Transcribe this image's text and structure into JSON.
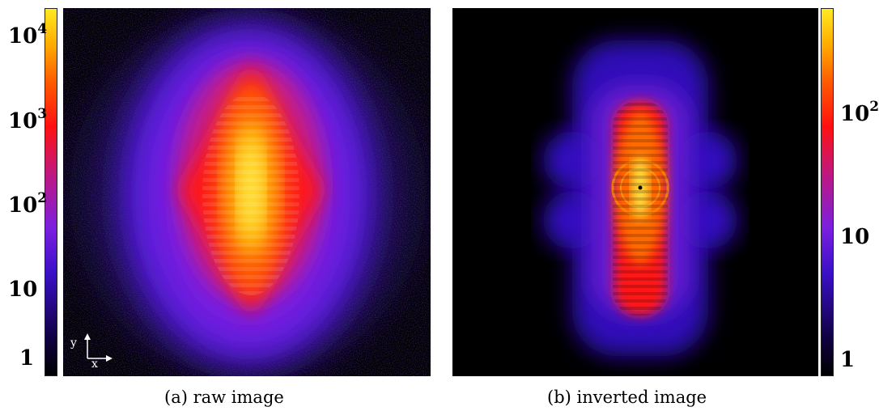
{
  "figure": {
    "panels": [
      {
        "caption": "(a)  raw image",
        "axis_indicator": {
          "x_label": "x",
          "y_label": "y"
        },
        "colorbar": {
          "scale": "log",
          "ticks": [
            {
              "base": "10",
              "exp": "4"
            },
            {
              "base": "10",
              "exp": "3"
            },
            {
              "base": "10",
              "exp": "2"
            },
            {
              "base": "10",
              "exp": ""
            },
            {
              "base": "1",
              "exp": ""
            }
          ]
        }
      },
      {
        "caption": "(b)  inverted image",
        "colorbar": {
          "scale": "log",
          "ticks": [
            {
              "base": "10",
              "exp": "2"
            },
            {
              "base": "10",
              "exp": ""
            },
            {
              "base": "1",
              "exp": ""
            }
          ]
        }
      }
    ],
    "colormap": [
      "#000000",
      "#2a0cb0",
      "#7a1fe0",
      "#ff1010",
      "#ff8800",
      "#ffea20"
    ]
  }
}
